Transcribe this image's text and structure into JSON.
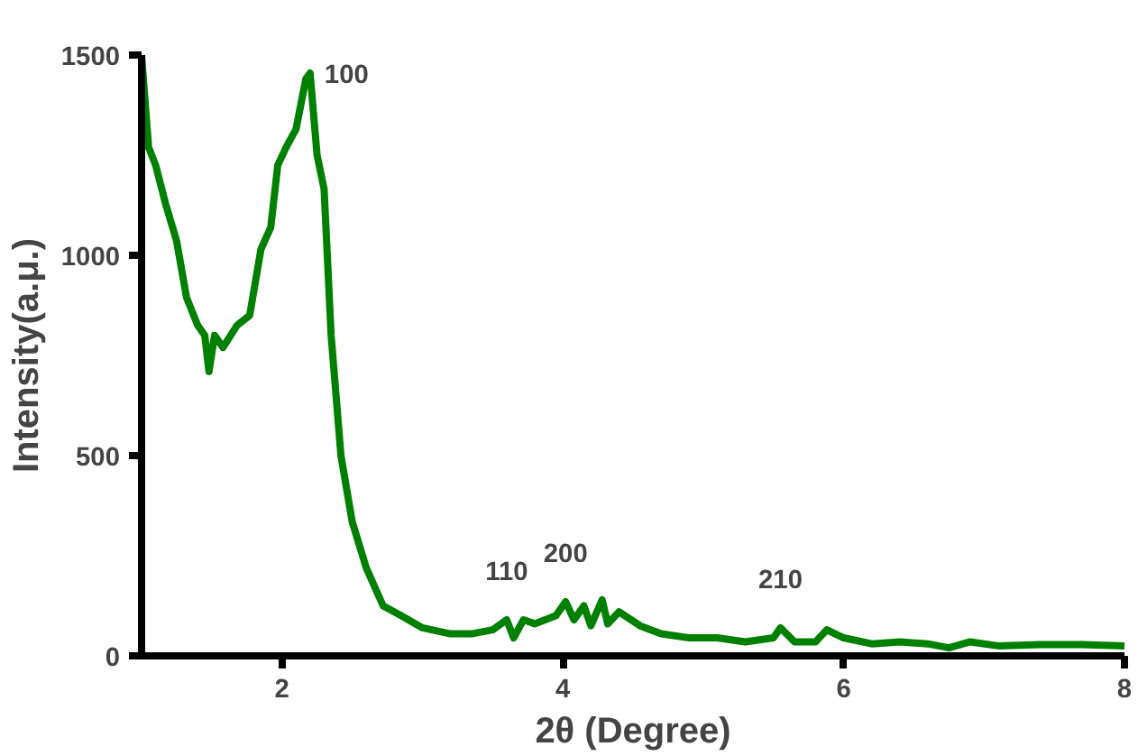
{
  "chart_data": {
    "type": "line",
    "xlabel": "2θ (Degree)",
    "ylabel": "Intensity(a.μ.)",
    "xlim": [
      1,
      8
    ],
    "ylim": [
      0,
      1500
    ],
    "xticks": [
      2,
      4,
      6,
      8
    ],
    "yticks": [
      0,
      500,
      1000,
      1500
    ],
    "grid": false,
    "marker": "none",
    "line_style": "solid",
    "series": [
      {
        "color": "#008000",
        "x": [
          1.0,
          1.05,
          1.1,
          1.17,
          1.25,
          1.32,
          1.4,
          1.45,
          1.48,
          1.52,
          1.58,
          1.68,
          1.77,
          1.85,
          1.92,
          1.97,
          2.03,
          2.1,
          2.17,
          2.2,
          2.25,
          2.3,
          2.35,
          2.42,
          2.5,
          2.6,
          2.72,
          2.85,
          3.0,
          3.2,
          3.35,
          3.5,
          3.6,
          3.65,
          3.72,
          3.8,
          3.95,
          4.02,
          4.08,
          4.15,
          4.2,
          4.28,
          4.32,
          4.4,
          4.55,
          4.7,
          4.9,
          5.1,
          5.3,
          5.5,
          5.55,
          5.65,
          5.8,
          5.88,
          6.0,
          6.2,
          6.4,
          6.6,
          6.75,
          6.9,
          7.1,
          7.4,
          7.7,
          8.0
        ],
        "values": [
          1500,
          1270,
          1225,
          1130,
          1035,
          895,
          825,
          800,
          710,
          800,
          770,
          825,
          850,
          1015,
          1070,
          1225,
          1270,
          1315,
          1440,
          1455,
          1250,
          1165,
          800,
          500,
          335,
          220,
          125,
          100,
          70,
          55,
          55,
          65,
          90,
          45,
          90,
          80,
          100,
          135,
          90,
          125,
          75,
          140,
          80,
          110,
          75,
          55,
          45,
          45,
          35,
          45,
          70,
          35,
          35,
          65,
          45,
          30,
          35,
          30,
          20,
          35,
          25,
          28,
          28,
          25
        ]
      }
    ],
    "annotations": [
      {
        "text": "100",
        "x": 2.2,
        "y": 1455
      },
      {
        "text": "110",
        "x": 3.6,
        "y": 90
      },
      {
        "text": "200",
        "x": 4.02,
        "y": 135
      },
      {
        "text": "210",
        "x": 5.55,
        "y": 70
      }
    ]
  }
}
